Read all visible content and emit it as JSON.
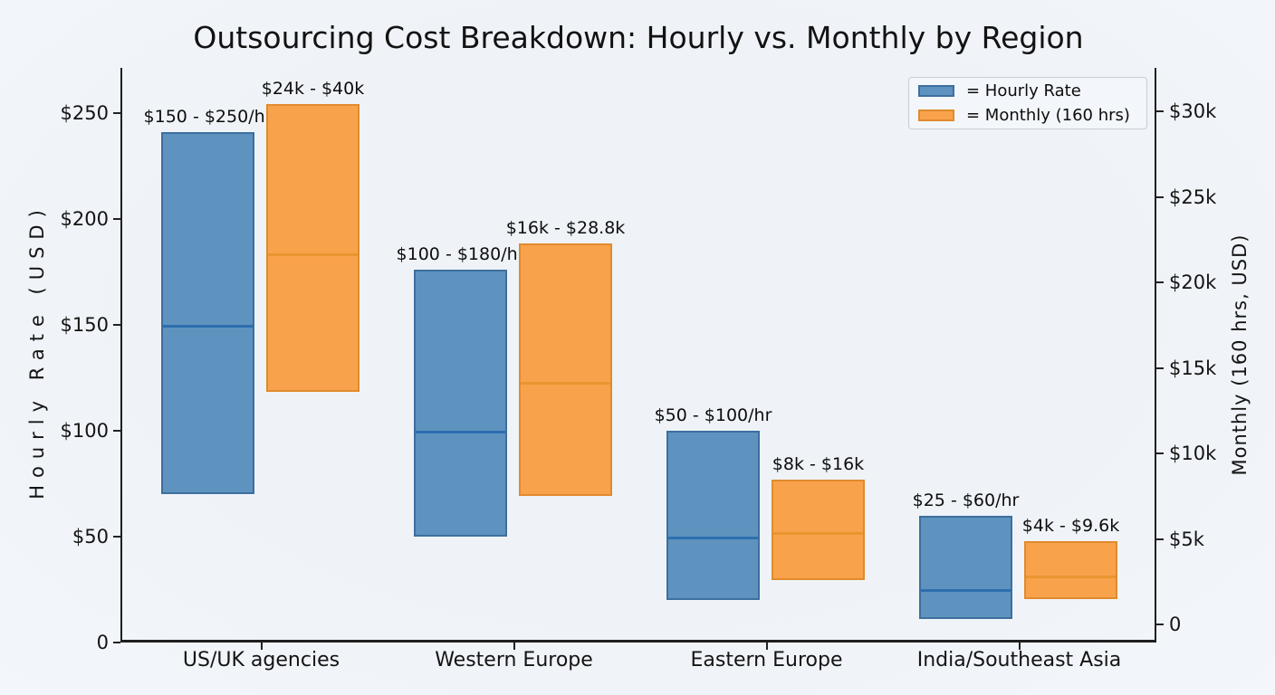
{
  "title": "Outsourcing Cost Breakdown: Hourly vs. Monthly by Region",
  "legend": {
    "items": [
      {
        "label": "= Hourly Rate",
        "color": "#5F93BF",
        "border": "#3D6F9F"
      },
      {
        "label": "= Monthly (160 hrs)",
        "color": "#F9A24C",
        "border": "#E08B2D"
      }
    ]
  },
  "axes": {
    "left": {
      "label": "Hourly Rate (USD)",
      "ticks": [
        {
          "value": 0,
          "label": "0"
        },
        {
          "value": 50,
          "label": "$50"
        },
        {
          "value": 100,
          "label": "$100"
        },
        {
          "value": 150,
          "label": "$150"
        },
        {
          "value": 200,
          "label": "$200"
        },
        {
          "value": 250,
          "label": "$250"
        }
      ]
    },
    "right": {
      "label": "Monthly (160 hrs, USD)",
      "ticks": [
        {
          "value": 0,
          "label": "0"
        },
        {
          "value": 5000,
          "label": "$5k"
        },
        {
          "value": 10000,
          "label": "$10k"
        },
        {
          "value": 15000,
          "label": "$15k"
        },
        {
          "value": 20000,
          "label": "$20k"
        },
        {
          "value": 25000,
          "label": "$25k"
        },
        {
          "value": 30000,
          "label": "$30k"
        }
      ]
    },
    "x": {
      "categories": [
        "US/UK agencies",
        "Western Europe",
        "Eastern Europe",
        "India/Southeast Asia"
      ]
    }
  },
  "chart_data": {
    "type": "bar",
    "subtype": "floating_range_bars_dual_axis",
    "title": "Outsourcing Cost Breakdown: Hourly vs. Monthly by Region",
    "categories": [
      "US/UK agencies",
      "Western Europe",
      "Eastern Europe",
      "India/Southeast Asia"
    ],
    "grid": false,
    "legend_position": "upper right",
    "left_axis": {
      "label": "Hourly Rate (USD)",
      "lim": [
        0,
        270
      ],
      "tick_values": [
        0,
        50,
        100,
        150,
        200,
        250
      ]
    },
    "right_axis": {
      "label": "Monthly (160 hrs, USD)",
      "lim": [
        0,
        32000
      ],
      "tick_values": [
        0,
        5000,
        10000,
        15000,
        20000,
        25000,
        30000
      ]
    },
    "series": [
      {
        "name": "Hourly Rate",
        "axis": "left",
        "unit": "USD per hour",
        "color": "#5F93BF",
        "edge_color": "#3D6F9F",
        "divider_color": "#2C6FAF",
        "ranges": [
          [
            150,
            250
          ],
          [
            100,
            180
          ],
          [
            50,
            100
          ],
          [
            25,
            60
          ]
        ],
        "range_labels": [
          "$150 - $250/hr",
          "$100 - $180/hr",
          "$50 - $100/hr",
          "$25 - $60/hr"
        ],
        "drawn_bar_extent": [
          [
            70,
            241
          ],
          [
            50,
            176
          ],
          [
            20,
            100
          ],
          [
            11,
            60
          ]
        ],
        "drawn_divider_value": [
          150,
          100,
          50,
          25
        ]
      },
      {
        "name": "Monthly (160 hrs)",
        "axis": "right",
        "unit": "USD per month",
        "color": "#F9A24C",
        "edge_color": "#E08B2D",
        "divider_color": "#E8962F",
        "ranges": [
          [
            24000,
            40000
          ],
          [
            16000,
            28800
          ],
          [
            8000,
            16000
          ],
          [
            4000,
            9600
          ]
        ],
        "range_labels": [
          "$24k - $40k",
          "$16k - $28.8k",
          "$8k - $16k",
          "$4k - $9.6k"
        ],
        "drawn_bar_extent": [
          [
            13600,
            30400
          ],
          [
            7500,
            22300
          ],
          [
            2600,
            8450
          ],
          [
            1500,
            4850
          ]
        ],
        "drawn_divider_value": [
          21700,
          14200,
          5400,
          2850
        ]
      }
    ]
  }
}
